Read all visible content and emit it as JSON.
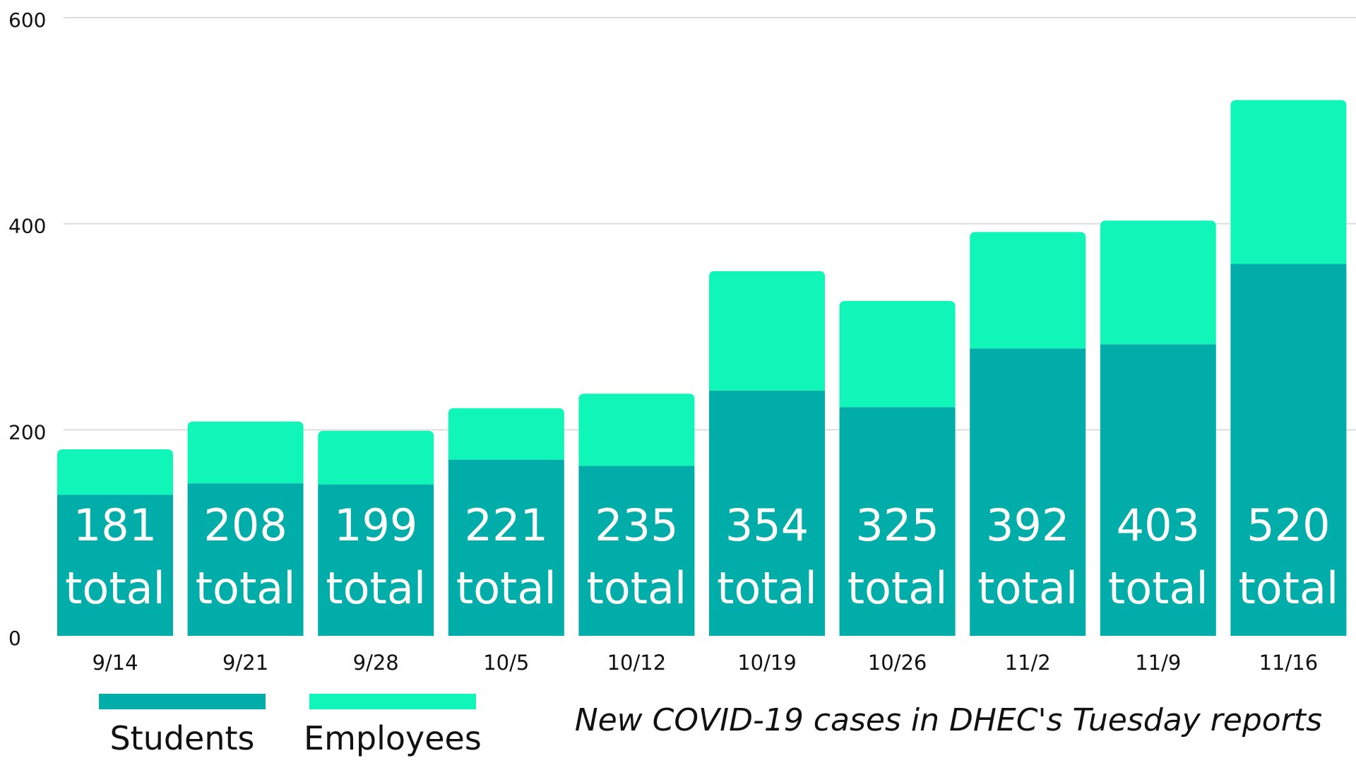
{
  "chart_data": {
    "type": "bar",
    "stacked": true,
    "title": "New COVID-19 cases in DHEC's Tuesday reports",
    "categories": [
      "9/14",
      "9/21",
      "9/28",
      "10/5",
      "10/12",
      "10/19",
      "10/26",
      "11/2",
      "11/9",
      "11/16"
    ],
    "series": [
      {
        "name": "Students",
        "color": "#00ADA8",
        "values": [
          137,
          148,
          147,
          171,
          165,
          238,
          222,
          279,
          283,
          361
        ]
      },
      {
        "name": "Employees",
        "color": "#10F5B8",
        "values": [
          44,
          60,
          52,
          50,
          70,
          116,
          103,
          113,
          120,
          159
        ]
      }
    ],
    "totals": [
      181,
      208,
      199,
      221,
      235,
      354,
      325,
      392,
      403,
      520
    ],
    "total_suffix": "total",
    "ylim": [
      0,
      600
    ],
    "yticks": [
      0,
      200,
      400,
      600
    ],
    "grid": true,
    "xlabel": "",
    "ylabel": "",
    "legend_position": "bottom-left"
  }
}
